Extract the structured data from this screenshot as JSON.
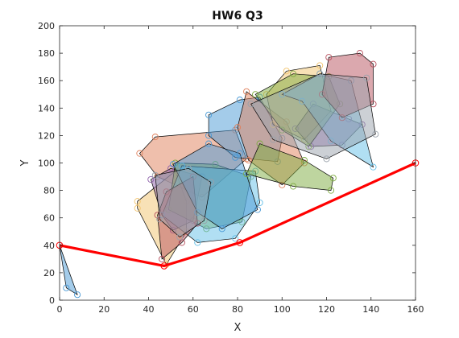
{
  "chart_data": {
    "type": "scatter",
    "title": "HW6 Q3",
    "xlabel": "X",
    "ylabel": "Y",
    "xlim": [
      0,
      160
    ],
    "ylim": [
      0,
      200
    ],
    "xticks": [
      0,
      20,
      40,
      60,
      80,
      100,
      120,
      140,
      160
    ],
    "yticks": [
      0,
      20,
      40,
      60,
      80,
      100,
      120,
      140,
      160,
      180,
      200
    ],
    "grid": false,
    "path": {
      "color": "#ff0000",
      "points": [
        [
          0,
          40
        ],
        [
          47,
          25
        ],
        [
          81,
          42
        ],
        [
          160,
          100
        ]
      ]
    },
    "polygons": [
      {
        "color": "#4a9ad6",
        "vertices": [
          [
            0,
            40
          ],
          [
            8,
            4
          ],
          [
            3,
            9
          ]
        ]
      },
      {
        "color": "#e07f5a",
        "vertices": [
          [
            43,
            119
          ],
          [
            79,
            124
          ],
          [
            84,
            103
          ],
          [
            64,
            75
          ],
          [
            44,
            90
          ],
          [
            36,
            107
          ]
        ]
      },
      {
        "color": "#f2c46d",
        "vertices": [
          [
            35,
            72
          ],
          [
            52,
            94
          ],
          [
            57,
            72
          ],
          [
            57,
            50
          ],
          [
            48,
            26
          ],
          [
            35,
            67
          ]
        ]
      },
      {
        "color": "#8c5fa8",
        "vertices": [
          [
            41,
            88
          ],
          [
            50,
            96
          ],
          [
            64,
            90
          ],
          [
            60,
            58
          ],
          [
            51,
            51
          ],
          [
            46,
            62
          ]
        ]
      },
      {
        "color": "#7dab3f",
        "vertices": [
          [
            52,
            100
          ],
          [
            70,
            99
          ],
          [
            86,
            90
          ],
          [
            82,
            57
          ],
          [
            66,
            52
          ],
          [
            49,
            66
          ]
        ]
      },
      {
        "color": "#63bfe8",
        "vertices": [
          [
            55,
            98
          ],
          [
            88,
            94
          ],
          [
            90,
            71
          ],
          [
            79,
            45
          ],
          [
            62,
            42
          ],
          [
            46,
            62
          ]
        ]
      },
      {
        "color": "#b8515e",
        "vertices": [
          [
            44,
            62
          ],
          [
            48,
            79
          ],
          [
            60,
            90
          ],
          [
            62,
            56
          ],
          [
            55,
            42
          ],
          [
            46,
            30
          ]
        ]
      },
      {
        "color": "#4a9ad6",
        "vertices": [
          [
            67,
            135
          ],
          [
            81,
            146
          ],
          [
            90,
            148
          ],
          [
            100,
            118
          ],
          [
            98,
            101
          ],
          [
            79,
            104
          ],
          [
            67,
            120
          ]
        ]
      },
      {
        "color": "#e07f5a",
        "vertices": [
          [
            84,
            152
          ],
          [
            102,
            130
          ],
          [
            110,
            100
          ],
          [
            100,
            84
          ],
          [
            85,
            102
          ],
          [
            80,
            126
          ]
        ]
      },
      {
        "color": "#f2c46d",
        "vertices": [
          [
            102,
            167
          ],
          [
            117,
            171
          ],
          [
            122,
            138
          ],
          [
            110,
            117
          ],
          [
            96,
            128
          ],
          [
            93,
            150
          ]
        ]
      },
      {
        "color": "#8c5fa8",
        "vertices": [
          [
            114,
            143
          ],
          [
            130,
            132
          ],
          [
            136,
            128
          ],
          [
            127,
            113
          ],
          [
            113,
            112
          ],
          [
            106,
            125
          ]
        ]
      },
      {
        "color": "#7dab3f",
        "vertices": [
          [
            88,
            150
          ],
          [
            105,
            165
          ],
          [
            121,
            163
          ],
          [
            126,
            143
          ],
          [
            112,
            112
          ],
          [
            100,
            124
          ]
        ]
      },
      {
        "color": "#63bfe8",
        "vertices": [
          [
            100,
            150
          ],
          [
            117,
            165
          ],
          [
            131,
            160
          ],
          [
            141,
            97
          ],
          [
            122,
            116
          ],
          [
            109,
            145
          ]
        ]
      },
      {
        "color": "#b8515e",
        "vertices": [
          [
            121,
            177
          ],
          [
            135,
            180
          ],
          [
            141,
            172
          ],
          [
            141,
            143
          ],
          [
            127,
            133
          ],
          [
            118,
            150
          ]
        ]
      },
      {
        "color": "#9aa2ab",
        "vertices": [
          [
            86,
            143
          ],
          [
            117,
            165
          ],
          [
            138,
            162
          ],
          [
            142,
            121
          ],
          [
            120,
            103
          ],
          [
            96,
            117
          ]
        ]
      },
      {
        "color": "#4a9ad6",
        "vertices": [
          [
            51,
            99
          ],
          [
            67,
            114
          ],
          [
            81,
            107
          ],
          [
            89,
            66
          ],
          [
            73,
            52
          ],
          [
            62,
            64
          ]
        ]
      },
      {
        "color": "#7dab3f",
        "vertices": [
          [
            90,
            114
          ],
          [
            110,
            102
          ],
          [
            123,
            89
          ],
          [
            122,
            80
          ],
          [
            105,
            83
          ],
          [
            84,
            92
          ]
        ]
      },
      {
        "color": "#9aa2ab",
        "vertices": [
          [
            43,
            91
          ],
          [
            58,
            96
          ],
          [
            68,
            86
          ],
          [
            65,
            58
          ],
          [
            54,
            46
          ],
          [
            45,
            59
          ]
        ]
      }
    ]
  }
}
